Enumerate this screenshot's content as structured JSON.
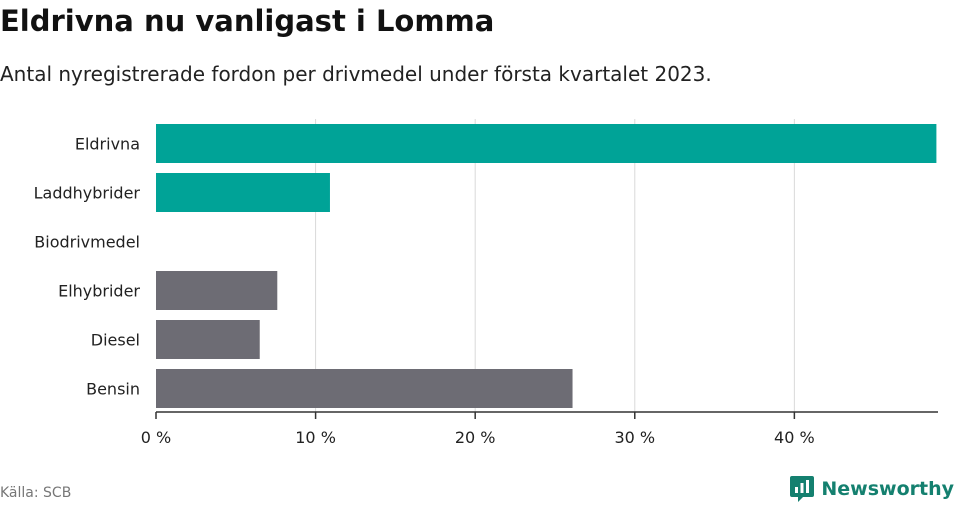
{
  "header": {
    "title": "Eldrivna nu vanligast i Lomma",
    "subtitle": "Antal nyregistrerade fordon per drivmedel under första kvartalet 2023."
  },
  "footer": {
    "source": "Källa: SCB",
    "brand": "Newsworthy"
  },
  "colors": {
    "highlight": "#00a397",
    "neutral": "#6d6c74",
    "grid": "#d9d9d9",
    "axis": "#333333",
    "brand": "#14806f"
  },
  "chart_data": {
    "type": "bar",
    "orientation": "horizontal",
    "categories": [
      "Eldrivna",
      "Laddhybrider",
      "Biodrivmedel",
      "Elhybrider",
      "Diesel",
      "Bensin"
    ],
    "values": [
      48.9,
      10.9,
      0,
      7.6,
      6.5,
      26.1
    ],
    "highlighted": [
      true,
      true,
      false,
      false,
      false,
      false
    ],
    "xlim": [
      0,
      49
    ],
    "xticks": [
      0,
      10,
      20,
      30,
      40
    ],
    "xtick_labels": [
      "0 %",
      "10 %",
      "20 %",
      "30 %",
      "40 %"
    ],
    "xlabel": "",
    "ylabel": "",
    "grid": true
  }
}
